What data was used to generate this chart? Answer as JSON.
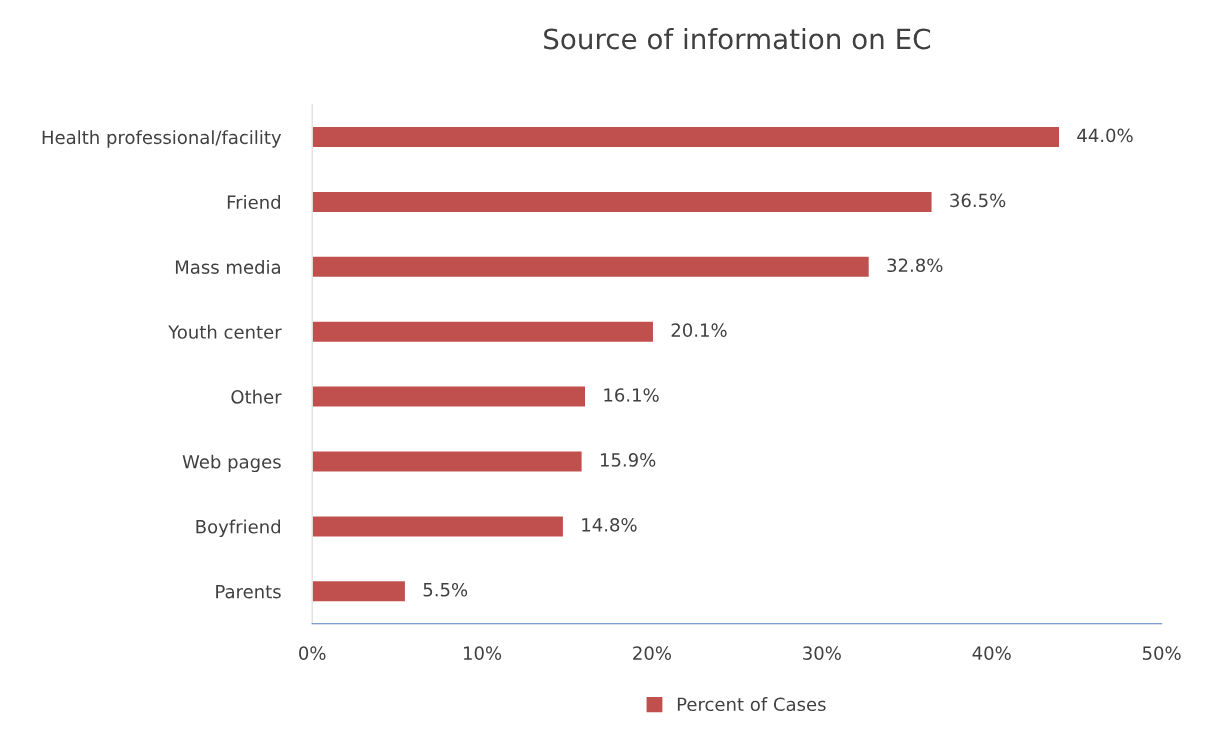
{
  "chart_data": {
    "type": "bar",
    "orientation": "horizontal",
    "title": "Source of information on EC",
    "categories": [
      "Health professional/facility",
      "Friend",
      "Mass media",
      "Youth center",
      "Other",
      "Web pages",
      "Boyfriend",
      "Parents"
    ],
    "series": [
      {
        "name": "Percent of Cases",
        "color": "#c0504d",
        "values": [
          44.0,
          36.5,
          32.8,
          20.1,
          16.1,
          15.9,
          14.8,
          5.5
        ],
        "value_labels": [
          "44.0%",
          "36.5%",
          "32.8%",
          "20.1%",
          "16.1%",
          "15.9%",
          "14.8%",
          "5.5%"
        ]
      }
    ],
    "xlim": [
      0,
      50
    ],
    "xticks": [
      {
        "value": 0,
        "label": "0%"
      },
      {
        "value": 10,
        "label": "10%"
      },
      {
        "value": 20,
        "label": "20%"
      },
      {
        "value": 30,
        "label": "30%"
      },
      {
        "value": 40,
        "label": "40%"
      },
      {
        "value": 50,
        "label": "50%"
      }
    ],
    "grid": false,
    "legend": "bottom"
  }
}
